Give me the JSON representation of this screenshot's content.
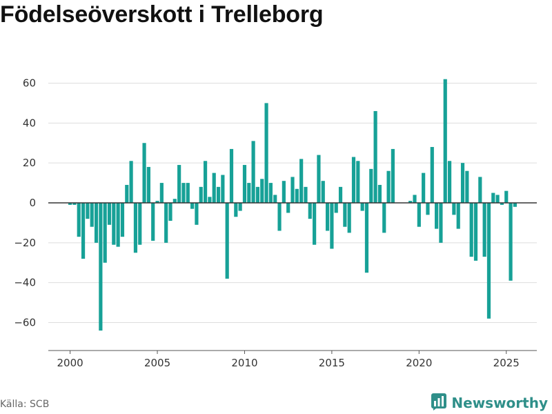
{
  "title": "Födelseöverskott i Trelleborg",
  "source": "Källa: SCB",
  "brand": {
    "name": "Newsworthy",
    "icon": "newsworthy-logo-icon"
  },
  "colors": {
    "bar": "#17a197",
    "zero_line": "#333333",
    "grid": "#dddddd",
    "brand": "#2f8f89"
  },
  "chart_data": {
    "type": "bar",
    "title": "Födelseöverskott i Trelleborg",
    "xlabel": "",
    "ylabel": "",
    "xlim": [
      1998.75,
      2026.75
    ],
    "ylim": [
      -74,
      74
    ],
    "yticks": [
      -60,
      -40,
      -20,
      0,
      20,
      40,
      60
    ],
    "xticks": [
      2000,
      2005,
      2010,
      2015,
      2020,
      2025
    ],
    "grid": true,
    "legend": "none",
    "start": "2000-01",
    "frequency": "quarterly",
    "values": [
      -1,
      -1,
      -17,
      -28,
      -8,
      -12,
      -20,
      -64,
      -30,
      -11,
      -21,
      -22,
      -17,
      9,
      21,
      -25,
      -21,
      30,
      18,
      -19,
      1,
      10,
      -20,
      -9,
      2,
      19,
      10,
      10,
      -3,
      -11,
      8,
      21,
      3,
      15,
      8,
      14,
      -38,
      27,
      -7,
      -4,
      19,
      10,
      31,
      8,
      12,
      50,
      10,
      4,
      -14,
      11,
      -5,
      13,
      7,
      22,
      8,
      -8,
      -21,
      24,
      11,
      -14,
      -23,
      -5,
      8,
      -12,
      -15,
      23,
      21,
      -4,
      -35,
      17,
      46,
      9,
      -15,
      16,
      27,
      0,
      0,
      0,
      1,
      4,
      -12,
      15,
      -6,
      28,
      -13,
      -20,
      62,
      21,
      -6,
      -13,
      20,
      16,
      -27,
      -29,
      13,
      -27,
      -58,
      5,
      4,
      -1,
      6,
      -39,
      -2
    ]
  }
}
